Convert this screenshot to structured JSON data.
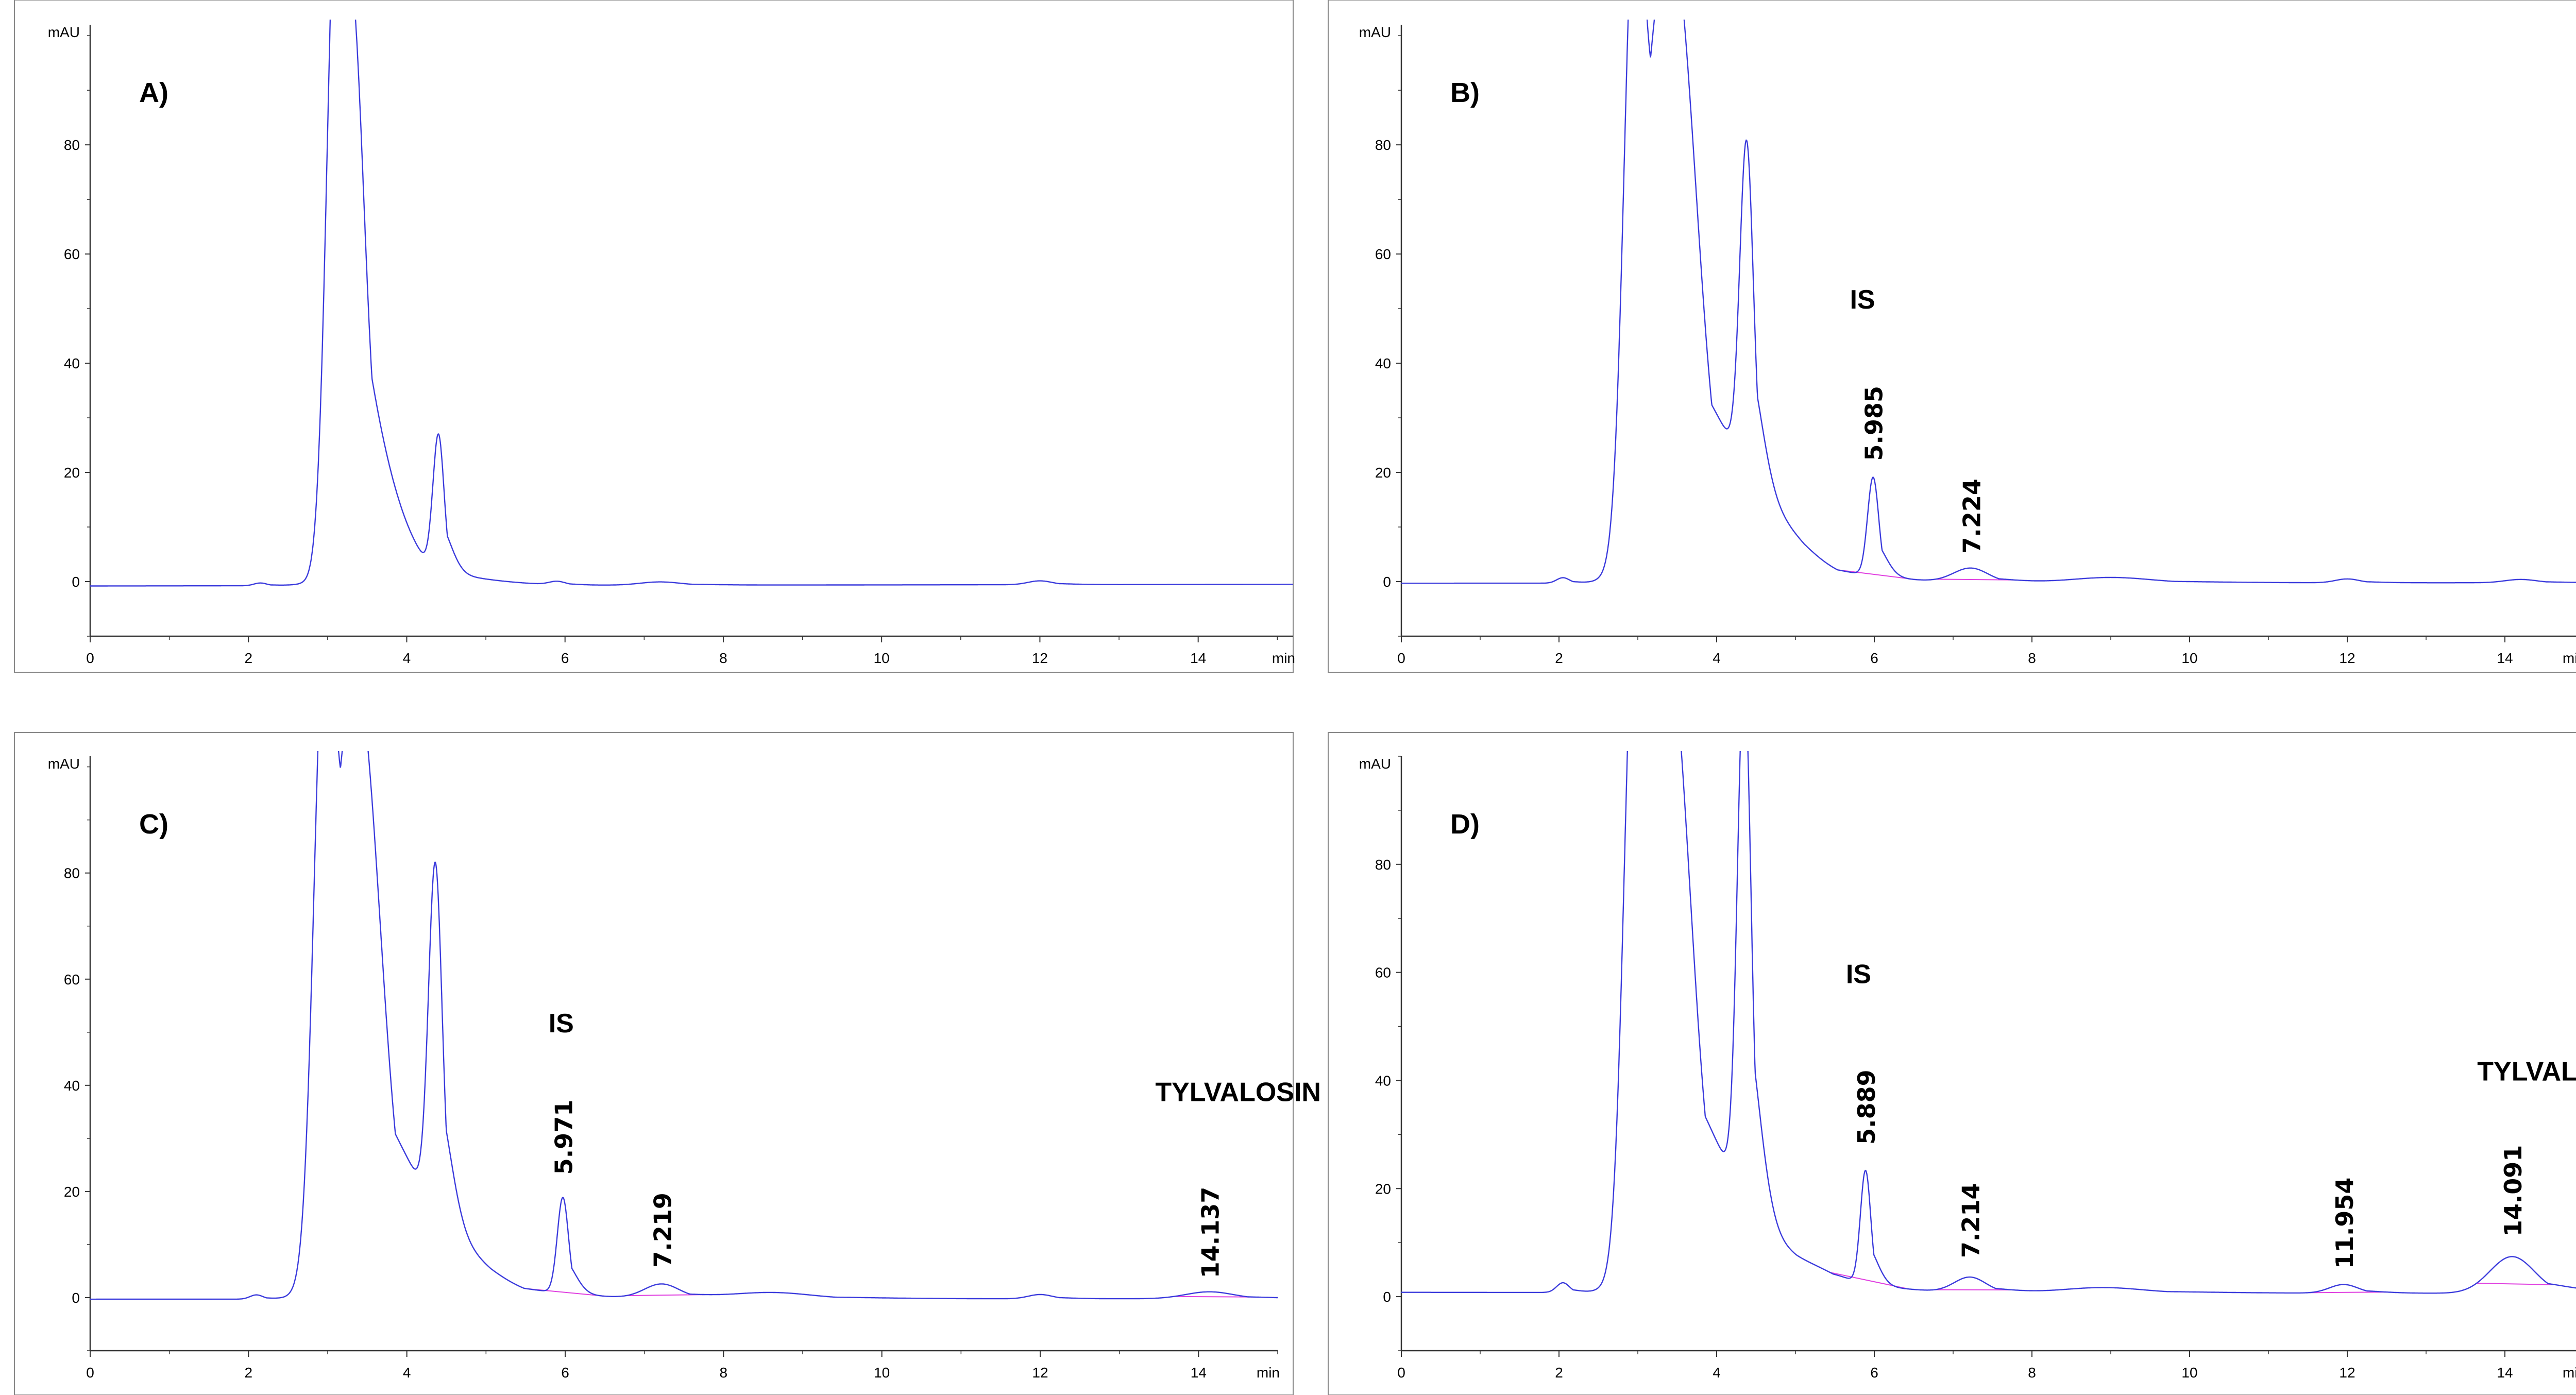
{
  "chart_data": [
    {
      "type": "line",
      "title": "A)",
      "ylabel": "mAU",
      "xlabel": "min",
      "xlim": [
        0,
        15.2
      ],
      "ylim": [
        -10,
        102
      ],
      "xticks": [
        0,
        2,
        4,
        6,
        8,
        10,
        12,
        14
      ],
      "yticks": [
        0,
        20,
        40,
        60,
        80
      ],
      "baseline_start": -0.8,
      "baseline_end": -0.5,
      "peaks": [
        {
          "t": 2.15,
          "h": 0.5,
          "w": 0.08
        },
        {
          "t": 3.1,
          "h": 95,
          "w": 0.12
        },
        {
          "t": 3.3,
          "h": 80,
          "w": 0.16
        },
        {
          "t": 3.7,
          "h": 10,
          "w": 0.4
        },
        {
          "t": 4.4,
          "h": 25,
          "w": 0.07
        },
        {
          "t": 5.9,
          "h": 0.6,
          "w": 0.1
        },
        {
          "t": 7.2,
          "h": 0.6,
          "w": 0.25
        },
        {
          "t": 12.0,
          "h": 0.7,
          "w": 0.15
        }
      ],
      "peak_labels": [],
      "annotations": []
    },
    {
      "type": "line",
      "title": "B)",
      "ylabel": "mAU",
      "xlabel": "min",
      "xlim": [
        0,
        15.0
      ],
      "ylim": [
        -10,
        102
      ],
      "xticks": [
        0,
        2,
        4,
        6,
        8,
        10,
        12,
        14
      ],
      "yticks": [
        0,
        20,
        40,
        60,
        80
      ],
      "baseline_start": -0.3,
      "baseline_end": -0.2,
      "peaks": [
        {
          "t": 2.05,
          "h": 1.0,
          "w": 0.08
        },
        {
          "t": 2.95,
          "h": 100,
          "w": 0.13
        },
        {
          "t": 3.45,
          "h": 110,
          "w": 0.3
        },
        {
          "t": 4.3,
          "h": 3,
          "w": 0.5
        },
        {
          "t": 4.38,
          "h": 60,
          "w": 0.085
        },
        {
          "t": 4.8,
          "h": 6,
          "w": 0.45
        },
        {
          "t": 5.985,
          "h": 18,
          "w": 0.07
        },
        {
          "t": 7.224,
          "h": 2.6,
          "w": 0.22
        },
        {
          "t": 9.0,
          "h": 1.0,
          "w": 0.5
        },
        {
          "t": 12.0,
          "h": 0.7,
          "w": 0.15
        },
        {
          "t": 14.2,
          "h": 0.6,
          "w": 0.2
        }
      ],
      "peak_labels": [
        {
          "t": 5.985,
          "y": 21,
          "text": "5.985"
        },
        {
          "t": 7.224,
          "y": 4,
          "text": "7.224"
        }
      ],
      "annotations": [
        {
          "x": 5.85,
          "y": 50,
          "text": "IS"
        }
      ]
    },
    {
      "type": "line",
      "title": "C)",
      "ylabel": "mAU",
      "xlabel": "min",
      "xlim": [
        0,
        15.0
      ],
      "ylim": [
        -10,
        102
      ],
      "xticks": [
        0,
        2,
        4,
        6,
        8,
        10,
        12,
        14
      ],
      "yticks": [
        0,
        20,
        40,
        60,
        80
      ],
      "baseline_start": -0.3,
      "baseline_end": -0.2,
      "peaks": [
        {
          "t": 2.1,
          "h": 0.8,
          "w": 0.08
        },
        {
          "t": 2.95,
          "h": 100,
          "w": 0.13
        },
        {
          "t": 3.4,
          "h": 105,
          "w": 0.28
        },
        {
          "t": 4.25,
          "h": 3,
          "w": 0.5
        },
        {
          "t": 4.36,
          "h": 65,
          "w": 0.085
        },
        {
          "t": 4.75,
          "h": 5,
          "w": 0.45
        },
        {
          "t": 5.971,
          "h": 18,
          "w": 0.07
        },
        {
          "t": 7.219,
          "h": 2.7,
          "w": 0.22
        },
        {
          "t": 8.6,
          "h": 1.2,
          "w": 0.5
        },
        {
          "t": 12.0,
          "h": 0.8,
          "w": 0.15
        },
        {
          "t": 14.137,
          "h": 1.3,
          "w": 0.3
        }
      ],
      "peak_labels": [
        {
          "t": 5.971,
          "y": 22,
          "text": "5.971"
        },
        {
          "t": 7.219,
          "y": 4.5,
          "text": "7.219"
        },
        {
          "t": 14.137,
          "y": 2.5,
          "text": "14.137"
        }
      ],
      "annotations": [
        {
          "x": 5.95,
          "y": 50,
          "text": "IS"
        },
        {
          "x": 14.5,
          "y": 37,
          "text": "TYLVALOSIN"
        }
      ]
    },
    {
      "type": "line",
      "title": "D)",
      "ylabel": "mAU",
      "xlabel": "min",
      "xlim": [
        0,
        15.0
      ],
      "ylim": [
        -10,
        100
      ],
      "xticks": [
        0,
        2,
        4,
        6,
        8,
        10,
        12,
        14
      ],
      "yticks": [
        0,
        20,
        40,
        60,
        80
      ],
      "baseline_start": 0.8,
      "baseline_end": 0.6,
      "peaks": [
        {
          "t": 2.05,
          "h": 1.8,
          "w": 0.08
        },
        {
          "t": 2.95,
          "h": 100,
          "w": 0.13
        },
        {
          "t": 3.4,
          "h": 110,
          "w": 0.28
        },
        {
          "t": 4.2,
          "h": 3,
          "w": 0.5
        },
        {
          "t": 4.35,
          "h": 97,
          "w": 0.085
        },
        {
          "t": 4.75,
          "h": 5,
          "w": 0.45
        },
        {
          "t": 5.4,
          "h": 1.5,
          "w": 0.3
        },
        {
          "t": 5.889,
          "h": 21,
          "w": 0.065
        },
        {
          "t": 7.214,
          "h": 2.8,
          "w": 0.2
        },
        {
          "t": 8.9,
          "h": 1.0,
          "w": 0.5
        },
        {
          "t": 11.954,
          "h": 1.6,
          "w": 0.18
        },
        {
          "t": 14.091,
          "h": 6.8,
          "w": 0.28
        }
      ],
      "peak_labels": [
        {
          "t": 5.889,
          "y": 27,
          "text": "5.889"
        },
        {
          "t": 7.214,
          "y": 6,
          "text": "7.214"
        },
        {
          "t": 11.954,
          "y": 4,
          "text": "11.954"
        },
        {
          "t": 14.091,
          "y": 10,
          "text": "14.091"
        }
      ],
      "annotations": [
        {
          "x": 5.8,
          "y": 58,
          "text": "IS"
        },
        {
          "x": 14.7,
          "y": 40,
          "text": "TYLVALOSIN"
        }
      ]
    }
  ],
  "colors": {
    "trace": "#3b3bdc",
    "baseline": "#e040e0",
    "axis": "#333333",
    "frame": "#888888"
  }
}
